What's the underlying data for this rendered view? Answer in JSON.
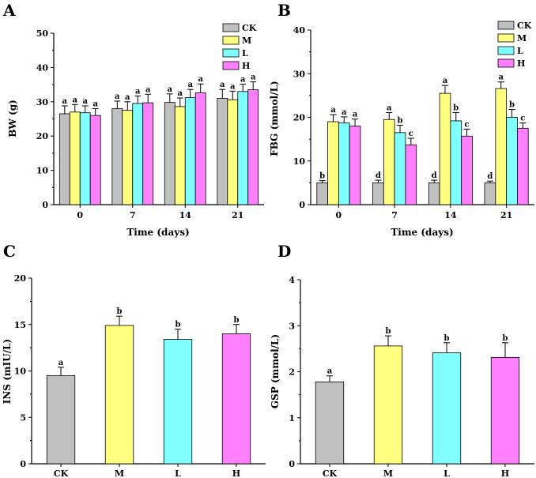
{
  "colors": {
    "CK": "#c0c0c0",
    "M": "#ffff80",
    "L": "#80ffff",
    "H": "#ff80ff"
  },
  "chart_data": [
    {
      "panel": "A",
      "type": "bar",
      "xlabel": "Time (days)",
      "ylabel": "BW (g)",
      "ylim": [
        0,
        50
      ],
      "yticks": [
        0,
        10,
        20,
        30,
        40,
        50
      ],
      "categories": [
        "0",
        "7",
        "14",
        "21"
      ],
      "legend": [
        "CK",
        "M",
        "L",
        "H"
      ],
      "legend_position": "top-right",
      "series": [
        {
          "name": "CK",
          "values": [
            26.5,
            28,
            29.8,
            31
          ],
          "errors": [
            2.3,
            2.2,
            2.5,
            2.6
          ],
          "labels": [
            "a",
            "a",
            "a",
            "a"
          ]
        },
        {
          "name": "M",
          "values": [
            27,
            27.5,
            28.6,
            30.6
          ],
          "errors": [
            2.2,
            2.5,
            2.5,
            2.5
          ],
          "labels": [
            "a",
            "a",
            "a",
            "a"
          ]
        },
        {
          "name": "L",
          "values": [
            26.8,
            29.5,
            31.2,
            33
          ],
          "errors": [
            2,
            2.2,
            2.4,
            2.1
          ],
          "labels": [
            "a",
            "a",
            "a",
            "a"
          ]
        },
        {
          "name": "H",
          "values": [
            26,
            29.7,
            32.6,
            33.5
          ],
          "errors": [
            2,
            2.5,
            2.6,
            2.3
          ],
          "labels": [
            "a",
            "a",
            "a",
            "a"
          ]
        }
      ]
    },
    {
      "panel": "B",
      "type": "bar",
      "xlabel": "Time (days)",
      "ylabel": "FBG (mmol/L)",
      "ylim": [
        0,
        40
      ],
      "yticks": [
        0,
        10,
        20,
        30,
        40
      ],
      "categories": [
        "0",
        "7",
        "14",
        "21"
      ],
      "legend": [
        "CK",
        "M",
        "L",
        "H"
      ],
      "legend_position": "top-right",
      "series": [
        {
          "name": "CK",
          "values": [
            5,
            5,
            5,
            5
          ],
          "errors": [
            0.5,
            0.6,
            0.6,
            0.4
          ],
          "labels": [
            "b",
            "d",
            "d",
            "d"
          ]
        },
        {
          "name": "M",
          "values": [
            19,
            19.5,
            25.5,
            26.6
          ],
          "errors": [
            1.6,
            1.6,
            1.8,
            1.5
          ],
          "labels": [
            "a",
            "a",
            "a",
            "a"
          ]
        },
        {
          "name": "L",
          "values": [
            18.7,
            16.5,
            19.2,
            20
          ],
          "errors": [
            1.4,
            1.7,
            1.9,
            1.8
          ],
          "labels": [
            "a",
            "b",
            "b",
            "b"
          ]
        },
        {
          "name": "H",
          "values": [
            18,
            13.7,
            15.7,
            17.5
          ],
          "errors": [
            1.6,
            1.5,
            1.6,
            1.2
          ],
          "labels": [
            "a",
            "c",
            "c",
            "c"
          ]
        }
      ]
    },
    {
      "panel": "C",
      "type": "bar",
      "xlabel": "",
      "ylabel": "INS (mIU/L)",
      "ylim": [
        0,
        20
      ],
      "yticks": [
        0,
        5,
        10,
        15,
        20
      ],
      "categories": [
        "CK",
        "M",
        "L",
        "H"
      ],
      "values": [
        9.5,
        14.9,
        13.4,
        14
      ],
      "errors": [
        0.9,
        1,
        1.1,
        1
      ],
      "labels": [
        "a",
        "b",
        "b",
        "b"
      ]
    },
    {
      "panel": "D",
      "type": "bar",
      "xlabel": "",
      "ylabel": "GSP (mmol/L)",
      "ylim": [
        0,
        4
      ],
      "yticks": [
        0,
        1,
        2,
        3,
        4
      ],
      "categories": [
        "CK",
        "M",
        "L",
        "H"
      ],
      "values": [
        1.78,
        2.56,
        2.41,
        2.31
      ],
      "errors": [
        0.13,
        0.22,
        0.22,
        0.32
      ],
      "labels": [
        "a",
        "b",
        "b",
        "b"
      ]
    }
  ]
}
